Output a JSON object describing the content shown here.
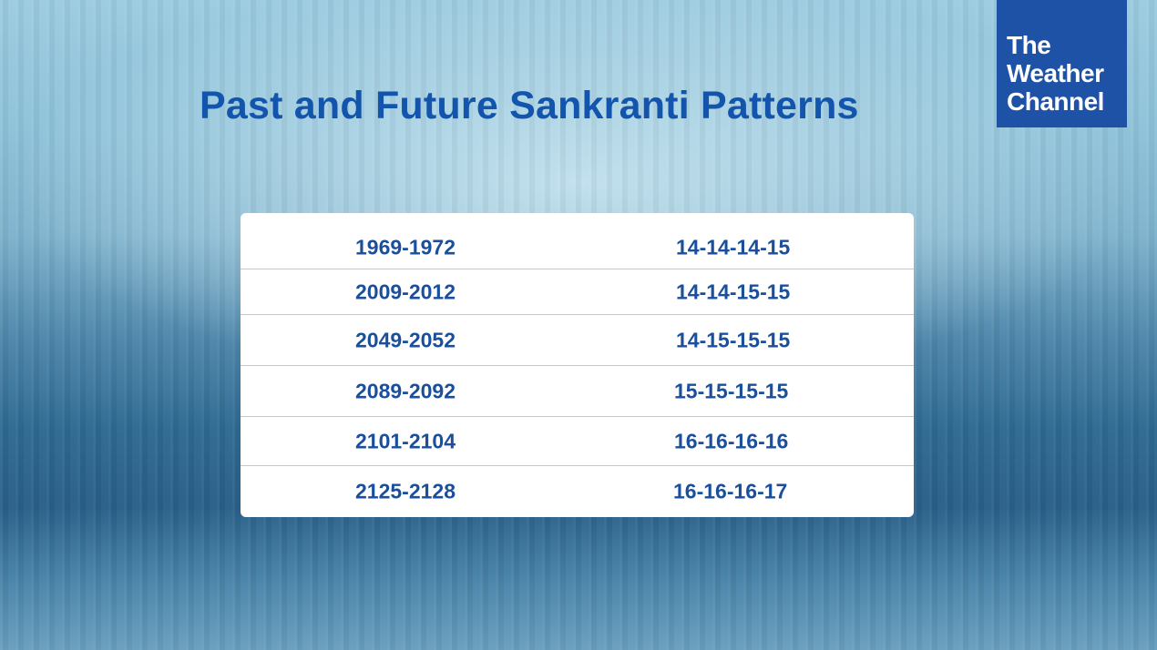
{
  "title": "Past and Future Sankranti Patterns",
  "logo": {
    "line1": "The",
    "line2": "Weather",
    "line3": "Channel"
  },
  "table": {
    "rows": [
      {
        "years": "1969-1972",
        "pattern": "14-14-14-15"
      },
      {
        "years": "2009-2012",
        "pattern": "14-14-15-15"
      },
      {
        "years": "2049-2052",
        "pattern": "14-15-15-15"
      },
      {
        "years": "2089-2092",
        "pattern": "15-15-15-15"
      },
      {
        "years": "2101-2104",
        "pattern": "16-16-16-16"
      },
      {
        "years": "2125-2128",
        "pattern": "16-16-16-17"
      }
    ]
  },
  "colors": {
    "title": "#1355ad",
    "logo_bg": "#1e52a7",
    "cell_text": "#1a4f9e",
    "divider": "#a9cfe0"
  }
}
